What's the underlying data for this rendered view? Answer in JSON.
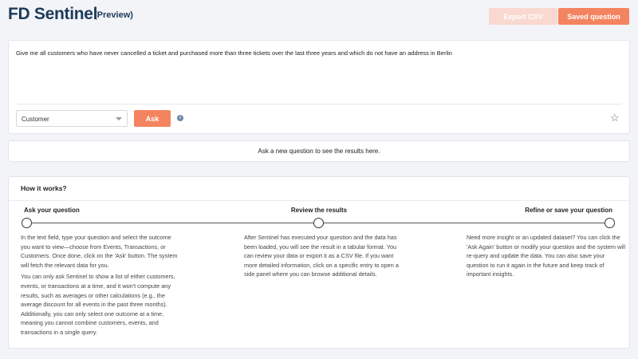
{
  "header": {
    "title": "FD Sentinel",
    "badge": "(Preview)",
    "export_label": "Export CSV",
    "saved_label": "Saved question"
  },
  "query": {
    "text": "Give me all customers who have never cancelled a ticket and purchased more than three tickets over the last three years and which do not have an address in Berlin",
    "outcome": "Customer",
    "ask_label": "Ask",
    "info_icon": "i"
  },
  "result": {
    "message": "Ask a new question to see the results here."
  },
  "how": {
    "title": "How it works?",
    "steps": [
      {
        "label": "Ask your question",
        "paragraphs": [
          "In the text field, type your question and select the outcome you want to view—choose from Events, Transactions, or Customers. Once done, click on the 'Ask' button. The system will fetch the relevant data for you.",
          "You can only ask Sentinel to show a list of either customers, events, or transactions at a time, and it won't compute any results, such as averages or other calculations (e.g., the average discount for all events in the past three months). Additionally, you can only select one outcome at a time, meaning you cannot combine customers, events, and transactions in a single query."
        ]
      },
      {
        "label": "Review the results",
        "paragraphs": [
          "After Sentinel has executed your question and the data has been loaded, you will see the result in a tabular format. You can review your data or export it as a CSV file. If you want more detailed information, click on a specific entry to open a side panel where you can browse additional details."
        ]
      },
      {
        "label": "Refine or save your question",
        "paragraphs": [
          "Need more insight or an updated dataset? You can click the 'Ask Again' button or modify your question and the system will re-query and update the data. You can also save your question to run it again in the future and keep track of important insights."
        ]
      }
    ]
  },
  "colors": {
    "accent": "#f4845f",
    "accent_disabled": "#f9d8d0",
    "title": "#1d3b5a"
  }
}
